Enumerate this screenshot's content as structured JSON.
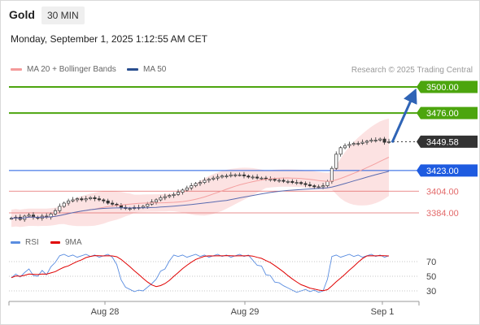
{
  "header": {
    "title": "Gold",
    "timeframe": "30 MIN",
    "datetime": "Monday, September 1, 2025 1:12:55 AM CET"
  },
  "legend": {
    "ma20": "MA 20 + Bollinger Bands",
    "ma50": "MA 50",
    "credit": "Research © 2025 Trading Central"
  },
  "rsi_legend": {
    "rsi": "RSI",
    "ma9": "9MA"
  },
  "colors": {
    "resistance": "#4ca50e",
    "pivot": "#1e5be0",
    "support": "#e36a6a",
    "last_price": "#333333",
    "candle": "#333333",
    "ma20": "#f4a0a0",
    "bollinger_fill": "#fbd8d8",
    "ma50": "#5a6bb0",
    "arrow": "#2f64b6",
    "rsi": "#5a8de0",
    "rsi_ma": "#e00000"
  },
  "chart_data": [
    {
      "type": "candlestick",
      "x_labels": [
        "Aug 28",
        "Aug 29",
        "Sep 1"
      ],
      "ylim": [
        3370,
        3510
      ],
      "levels": [
        {
          "value": 3500.0,
          "label": "3500.00",
          "kind": "resistance"
        },
        {
          "value": 3476.0,
          "label": "3476.00",
          "kind": "resistance"
        },
        {
          "value": 3449.58,
          "label": "3449.58",
          "kind": "last"
        },
        {
          "value": 3423.0,
          "label": "3423.00",
          "kind": "pivot"
        },
        {
          "value": 3404.0,
          "label": "3404.00",
          "kind": "support"
        },
        {
          "value": 3384.0,
          "label": "3384.00",
          "kind": "support"
        }
      ],
      "close": [
        3379,
        3380,
        3378,
        3381,
        3382,
        3380,
        3379,
        3381,
        3380,
        3383,
        3386,
        3390,
        3393,
        3395,
        3396,
        3397,
        3396,
        3397,
        3398,
        3397,
        3396,
        3395,
        3393,
        3392,
        3391,
        3389,
        3388,
        3388,
        3389,
        3389,
        3390,
        3392,
        3394,
        3396,
        3398,
        3399,
        3400,
        3401,
        3403,
        3405,
        3407,
        3409,
        3411,
        3412,
        3414,
        3415,
        3416,
        3417,
        3418,
        3418,
        3419,
        3419,
        3419,
        3418,
        3417,
        3417,
        3416,
        3416,
        3415,
        3415,
        3414,
        3414,
        3413,
        3413,
        3412,
        3412,
        3411,
        3410,
        3409,
        3408,
        3408,
        3409,
        3413,
        3425,
        3438,
        3444,
        3446,
        3447,
        3448,
        3448,
        3449,
        3450,
        3451,
        3451,
        3452,
        3449,
        3449.58
      ],
      "indicators": [
        "MA 20 + Bollinger Bands",
        "MA 50"
      ],
      "projection": {
        "from": 3449.58,
        "to": 3500.0
      }
    },
    {
      "type": "line",
      "name": "RSI",
      "ylim": [
        20,
        80
      ],
      "y_ticks": [
        "70",
        "50",
        "30"
      ],
      "series": [
        "RSI",
        "9MA"
      ]
    }
  ]
}
